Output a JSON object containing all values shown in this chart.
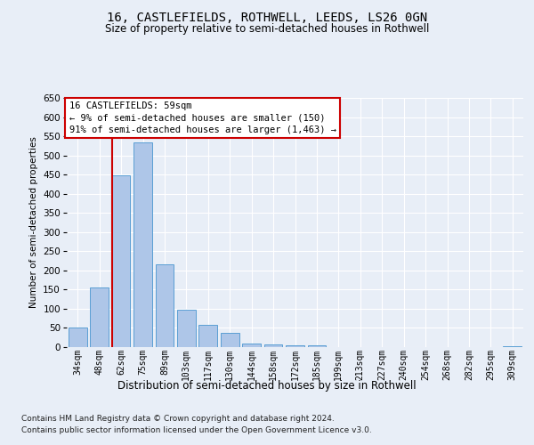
{
  "title1": "16, CASTLEFIELDS, ROTHWELL, LEEDS, LS26 0GN",
  "title2": "Size of property relative to semi-detached houses in Rothwell",
  "xlabel": "Distribution of semi-detached houses by size in Rothwell",
  "ylabel": "Number of semi-detached properties",
  "footer1": "Contains HM Land Registry data © Crown copyright and database right 2024.",
  "footer2": "Contains public sector information licensed under the Open Government Licence v3.0.",
  "annotation_title": "16 CASTLEFIELDS: 59sqm",
  "annotation_line2": "← 9% of semi-detached houses are smaller (150)",
  "annotation_line3": "91% of semi-detached houses are larger (1,463) →",
  "categories": [
    "34sqm",
    "48sqm",
    "62sqm",
    "75sqm",
    "89sqm",
    "103sqm",
    "117sqm",
    "130sqm",
    "144sqm",
    "158sqm",
    "172sqm",
    "185sqm",
    "199sqm",
    "213sqm",
    "227sqm",
    "240sqm",
    "254sqm",
    "268sqm",
    "282sqm",
    "295sqm",
    "309sqm"
  ],
  "values": [
    52,
    155,
    448,
    535,
    215,
    97,
    59,
    36,
    9,
    8,
    5,
    5,
    1,
    0,
    0,
    0,
    0,
    0,
    0,
    0,
    3
  ],
  "bar_color": "#aec6e8",
  "bar_edge_color": "#5a9fd4",
  "vline_color": "#cc0000",
  "vline_index": 2,
  "ylim": [
    0,
    650
  ],
  "yticks": [
    0,
    50,
    100,
    150,
    200,
    250,
    300,
    350,
    400,
    450,
    500,
    550,
    600,
    650
  ],
  "background_color": "#e8eef7",
  "plot_bg_color": "#e8eef7",
  "annotation_box_color": "#ffffff",
  "annotation_box_edge": "#cc0000",
  "grid_color": "#ffffff",
  "title1_fontsize": 10,
  "title2_fontsize": 8.5,
  "ylabel_fontsize": 7.5,
  "tick_fontsize": 7.5,
  "xtick_fontsize": 7,
  "footer_fontsize": 6.5,
  "xlabel_fontsize": 8.5,
  "annotation_fontsize": 7.5
}
